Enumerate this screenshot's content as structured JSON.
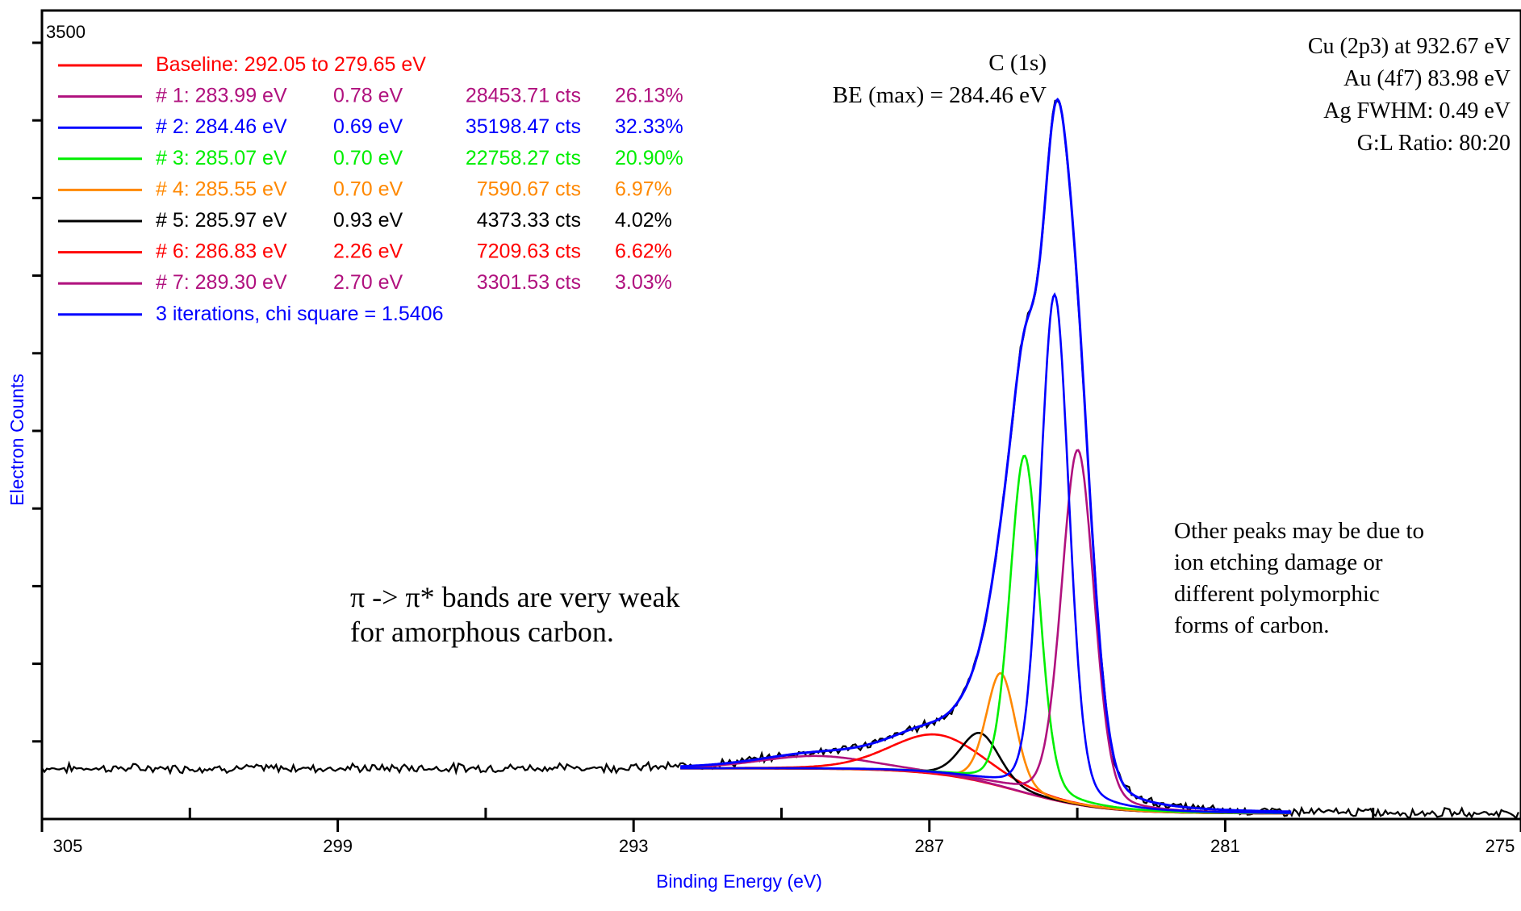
{
  "chart_data": {
    "type": "line",
    "title": "",
    "xlabel": "Binding Energy (eV)",
    "ylabel": "Electron Counts",
    "xlim": [
      305,
      275
    ],
    "ylim": [
      0,
      3500
    ],
    "x_reversed": true,
    "grid": false,
    "xticks": [
      "305",
      "299",
      "293",
      "287",
      "281",
      "275"
    ],
    "xtick_values": [
      305,
      299,
      293,
      287,
      281,
      275
    ],
    "xminor_values": [
      302,
      296,
      290,
      284,
      278
    ],
    "ytick_label": "3500",
    "ytick_values": [
      3500,
      3150,
      2800,
      2450,
      2100,
      1750,
      1400,
      1050,
      700,
      350
    ],
    "legend_position": "top-left",
    "baseline": {
      "label": "Baseline: 292.05 to 279.65 eV",
      "start": 292.05,
      "end": 279.65,
      "level_start": 228,
      "level_end": 25,
      "color": "#ff0000"
    },
    "peaks": [
      {
        "id": "1",
        "label": "# 1:",
        "center": "283.99 eV",
        "fwhm": "0.78 eV",
        "area": "28453.71 cts",
        "percent": "26.13%",
        "center_ev": 283.99,
        "fwhm_ev": 0.78,
        "height": 1600,
        "color": "#b0117e"
      },
      {
        "id": "2",
        "label": "# 2:",
        "center": "284.46 eV",
        "fwhm": "0.69 eV",
        "area": "35198.47 cts",
        "percent": "32.33%",
        "center_ev": 284.46,
        "fwhm_ev": 0.69,
        "height": 2280,
        "color": "#0000ff"
      },
      {
        "id": "3",
        "label": "# 3:",
        "center": "285.07 eV",
        "fwhm": "0.70 eV",
        "area": "22758.27 cts",
        "percent": "20.90%",
        "center_ev": 285.07,
        "fwhm_ev": 0.7,
        "height": 1520,
        "color": "#00ee00"
      },
      {
        "id": "4",
        "label": "# 4:",
        "center": "285.55 eV",
        "fwhm": "0.70 eV",
        "area": "7590.67 cts",
        "percent": "6.97%",
        "center_ev": 285.55,
        "fwhm_ev": 0.7,
        "height": 510,
        "color": "#ff8800"
      },
      {
        "id": "5",
        "label": "# 5:",
        "center": "285.97 eV",
        "fwhm": "0.93 eV",
        "area": "4373.33 cts",
        "percent": "4.02%",
        "center_ev": 285.97,
        "fwhm_ev": 0.93,
        "height": 218,
        "color": "#000000"
      },
      {
        "id": "6",
        "label": "# 6:",
        "center": "286.83 eV",
        "fwhm": "2.26 eV",
        "area": "7209.63 cts",
        "percent": "6.62%",
        "center_ev": 286.83,
        "fwhm_ev": 2.26,
        "height": 178,
        "color": "#ff0000"
      },
      {
        "id": "7",
        "label": "# 7:",
        "center": "289.30 eV",
        "fwhm": "2.70 eV",
        "area": "3301.53 cts",
        "percent": "3.03%",
        "center_ev": 289.3,
        "fwhm_ev": 2.7,
        "height": 58,
        "color": "#b0117e"
      }
    ],
    "envelope": {
      "label": "3 iterations, chi square = 1.5406",
      "color": "#0000ff"
    },
    "raw_data": {
      "color": "#000000",
      "background_low": 228,
      "background_high": 25,
      "step_ev": 0.05
    },
    "peak_title": "C (1s)",
    "peak_be": "BE (max) = 284.46 eV",
    "calibration": [
      "Cu (2p3) at 932.67 eV",
      "Au (4f7) 83.98 eV",
      "Ag FWHM:  0.49 eV",
      "G:L Ratio:  80:20"
    ],
    "annotation_left": [
      "π -> π* bands are very weak",
      "for amorphous carbon."
    ],
    "annotation_right": [
      "Other peaks may be due to",
      "ion etching damage or",
      "different polymorphic",
      "forms of carbon."
    ],
    "axis_color": "#000000",
    "label_color": "#0000ff"
  }
}
